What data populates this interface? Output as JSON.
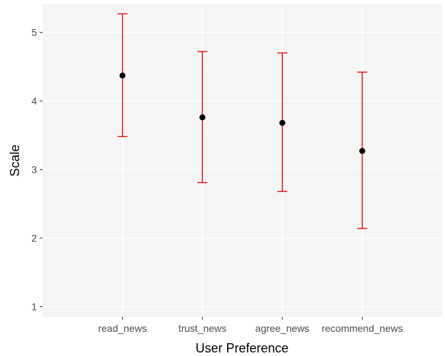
{
  "chart_data": {
    "type": "scatter",
    "title": "",
    "xlabel": "User Preference",
    "ylabel": "Scale",
    "categories": [
      "read_news",
      "trust_news",
      "agree_news",
      "recommend_news"
    ],
    "series": [
      {
        "values": [
          4.37,
          3.76,
          3.68,
          3.27
        ],
        "lower": [
          3.48,
          2.81,
          2.68,
          2.14
        ],
        "upper": [
          5.27,
          4.72,
          4.7,
          4.42
        ]
      }
    ],
    "ylim": [
      0.85,
      5.42
    ],
    "yticks": [
      1,
      2,
      3,
      4,
      5
    ],
    "grid": true,
    "legend": "none",
    "colors": {
      "panel": "#f5f5f5",
      "grid": "#ffffff",
      "point": "#000000",
      "errorbar": "#e31a1c"
    }
  }
}
